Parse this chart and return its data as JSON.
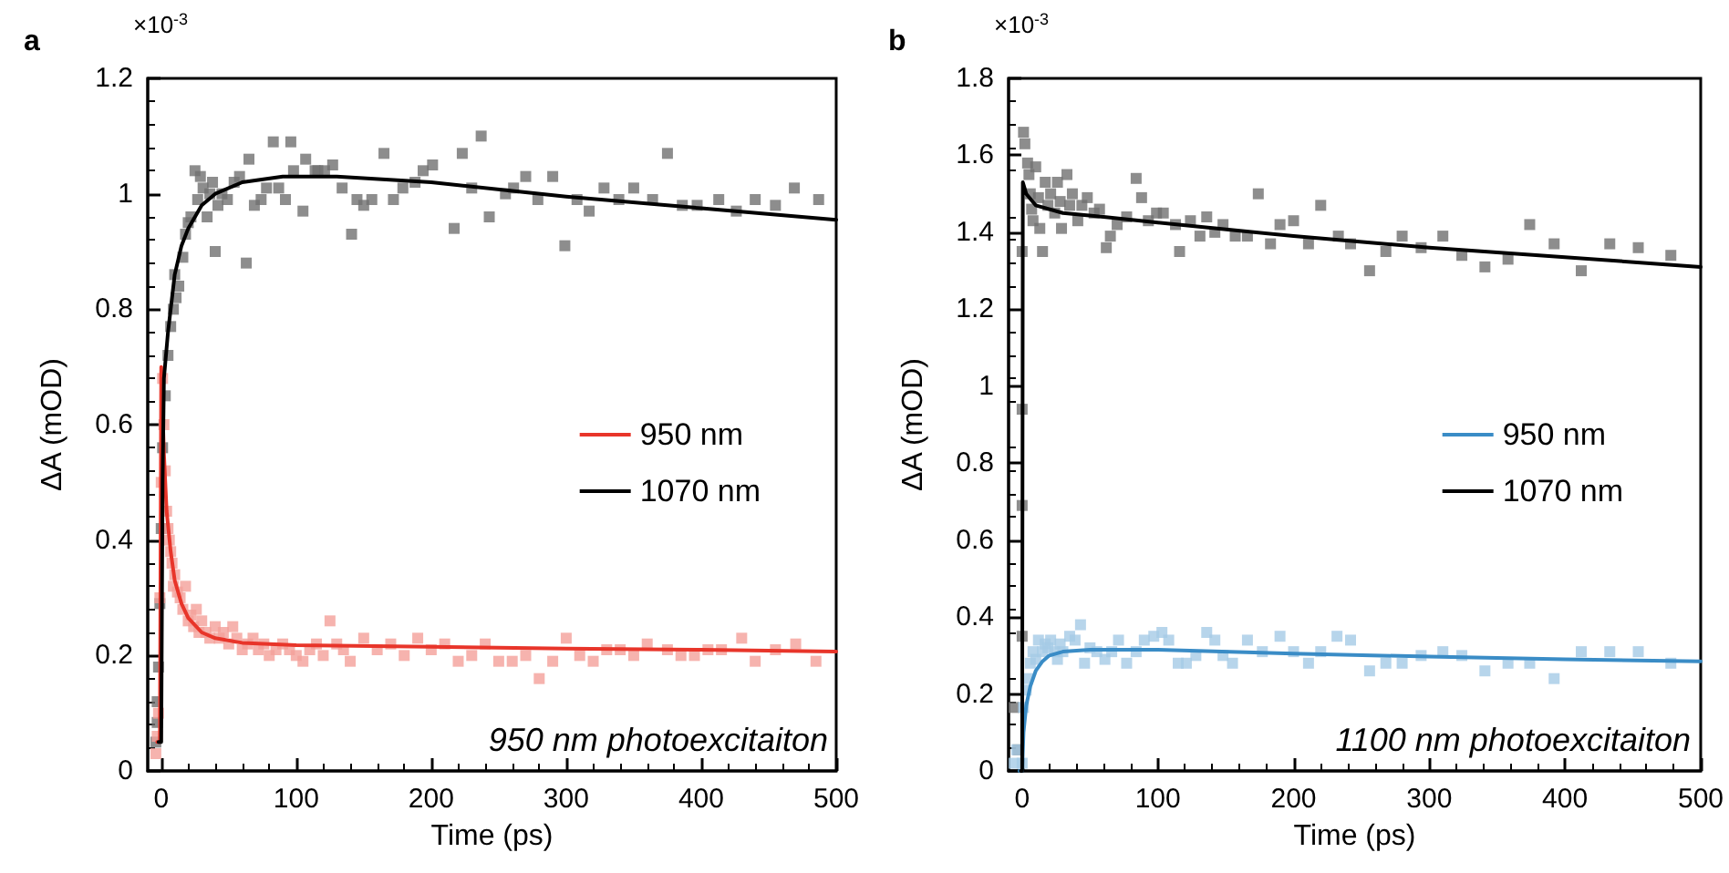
{
  "chart_data": [
    {
      "type": "scatter",
      "title": "a",
      "xlabel": "Time (ps)",
      "ylabel": "ΔA (mOD)",
      "annotations": [
        "×10$^{-3}$",
        "950 nm photoexcitaiton"
      ],
      "xlim": [
        -10,
        500
      ],
      "ylim": [
        0,
        1.2
      ],
      "xticks": [
        0,
        100,
        200,
        300,
        400,
        500
      ],
      "yticks": [
        0,
        0.2,
        0.4,
        0.6,
        0.8,
        1,
        1.2
      ],
      "legend": "right",
      "series": [
        {
          "color": "#707070",
          "marker": "square",
          "x": [
            -4,
            -3,
            -2,
            -3,
            -1,
            0,
            1,
            3,
            5,
            7,
            9,
            10,
            11,
            13,
            16,
            18,
            20,
            22,
            25,
            27,
            29,
            31,
            34,
            36,
            38,
            40,
            42,
            45,
            49,
            54,
            58,
            63,
            65,
            69,
            74,
            78,
            83,
            87,
            92,
            96,
            98,
            105,
            107,
            114,
            116,
            121,
            127,
            134,
            141,
            145,
            150,
            156,
            165,
            172,
            179,
            188,
            194,
            201,
            217,
            223,
            230,
            237,
            243,
            255,
            261,
            270,
            279,
            290,
            299,
            308,
            317,
            328,
            339,
            350,
            364,
            375,
            386,
            397,
            413,
            426,
            440,
            455,
            469,
            487
          ],
          "values": [
            0.05,
            0.12,
            0.18,
            0.084,
            0.29,
            0.42,
            0.56,
            0.65,
            0.72,
            0.77,
            0.8,
            0.86,
            0.82,
            0.84,
            0.89,
            0.93,
            0.95,
            0.96,
            1.04,
            0.99,
            1.03,
            1.01,
            0.96,
            1.0,
            1.02,
            0.9,
            0.98,
            1.0,
            0.99,
            1.02,
            1.03,
            0.88,
            1.06,
            0.98,
            0.99,
            1.01,
            1.09,
            1.01,
            0.99,
            1.09,
            1.04,
            0.97,
            1.06,
            1.04,
            1.04,
            1.04,
            1.05,
            1.01,
            0.93,
            0.99,
            0.98,
            0.99,
            1.07,
            0.99,
            1.01,
            1.02,
            1.04,
            1.05,
            0.94,
            1.07,
            1.01,
            1.1,
            0.96,
            1.0,
            1.01,
            1.03,
            0.99,
            1.03,
            0.91,
            0.99,
            0.97,
            1.01,
            0.99,
            1.01,
            0.99,
            1.07,
            0.98,
            0.98,
            0.99,
            0.97,
            0.99,
            0.98,
            1.01,
            0.99
          ]
        },
        {
          "color": "#f4a09a",
          "marker": "square",
          "x": [
            -4,
            -3,
            -2,
            -1,
            0,
            1,
            2,
            3,
            4,
            5,
            6,
            7,
            8,
            9,
            10,
            12,
            14,
            16,
            18,
            20,
            22,
            24,
            26,
            28,
            30,
            33,
            36,
            40,
            43,
            46,
            50,
            53,
            56,
            60,
            64,
            68,
            72,
            76,
            80,
            85,
            90,
            95,
            100,
            105,
            110,
            115,
            120,
            125,
            130,
            135,
            140,
            150,
            160,
            170,
            180,
            190,
            200,
            210,
            220,
            230,
            240,
            250,
            260,
            270,
            280,
            290,
            300,
            310,
            320,
            330,
            340,
            350,
            360,
            375,
            385,
            395,
            405,
            415,
            430,
            440,
            455,
            470,
            485
          ],
          "values": [
            0.03,
            0.06,
            0.1,
            0.3,
            0.5,
            0.68,
            0.6,
            0.52,
            0.45,
            0.42,
            0.4,
            0.38,
            0.36,
            0.32,
            0.34,
            0.31,
            0.3,
            0.28,
            0.32,
            0.26,
            0.27,
            0.25,
            0.28,
            0.24,
            0.26,
            0.24,
            0.23,
            0.25,
            0.23,
            0.24,
            0.22,
            0.25,
            0.23,
            0.21,
            0.22,
            0.23,
            0.21,
            0.22,
            0.2,
            0.21,
            0.22,
            0.21,
            0.2,
            0.19,
            0.21,
            0.22,
            0.2,
            0.26,
            0.22,
            0.21,
            0.19,
            0.23,
            0.21,
            0.22,
            0.2,
            0.23,
            0.21,
            0.22,
            0.19,
            0.2,
            0.22,
            0.19,
            0.19,
            0.2,
            0.16,
            0.19,
            0.23,
            0.2,
            0.19,
            0.21,
            0.21,
            0.2,
            0.22,
            0.21,
            0.2,
            0.2,
            0.21,
            0.21,
            0.23,
            0.19,
            0.21,
            0.22,
            0.19
          ]
        },
        {
          "name": "950 nm",
          "type": "line",
          "color": "#e8352a",
          "marker": "none",
          "line_style": "solid",
          "x": [
            -3,
            -1,
            0,
            2,
            4,
            7,
            10,
            15,
            20,
            30,
            40,
            60,
            100,
            200,
            300,
            400,
            500
          ],
          "values": [
            0.05,
            0.05,
            0.7,
            0.55,
            0.45,
            0.38,
            0.33,
            0.29,
            0.265,
            0.24,
            0.23,
            0.222,
            0.218,
            0.215,
            0.212,
            0.21,
            0.207
          ]
        },
        {
          "name": "1070 nm",
          "type": "line",
          "color": "#000000",
          "marker": "none",
          "line_style": "solid",
          "x": [
            -2,
            0,
            1,
            2,
            5,
            10,
            15,
            20,
            30,
            40,
            60,
            90,
            130,
            200,
            300,
            400,
            500
          ],
          "values": [
            0.05,
            0.05,
            0.5,
            0.68,
            0.76,
            0.86,
            0.91,
            0.94,
            0.98,
            1.0,
            1.02,
            1.03,
            1.03,
            1.02,
            0.995,
            0.975,
            0.955
          ]
        }
      ]
    },
    {
      "type": "scatter",
      "title": "b",
      "xlabel": "Time (ps)",
      "ylabel": "ΔA (mOD)",
      "annotations": [
        "×10$^{-3}$",
        "1100 nm photoexcitaiton"
      ],
      "xlim": [
        -10,
        500
      ],
      "ylim": [
        0,
        1.8
      ],
      "xticks": [
        0,
        100,
        200,
        300,
        400,
        500
      ],
      "yticks": [
        0,
        0.2,
        0.4,
        0.6,
        0.8,
        1,
        1.2,
        1.4,
        1.6,
        1.8
      ],
      "legend": "right",
      "series": [
        {
          "color": "#707070",
          "marker": "square",
          "x": [
            -6,
            -3,
            0,
            0,
            0,
            0,
            1,
            2,
            4,
            5,
            6,
            7,
            8,
            10,
            12,
            13,
            15,
            17,
            19,
            21,
            24,
            26,
            28,
            29,
            33,
            35,
            37,
            41,
            44,
            48,
            53,
            57,
            62,
            65,
            70,
            77,
            84,
            88,
            93,
            99,
            104,
            113,
            116,
            124,
            131,
            136,
            142,
            148,
            157,
            166,
            174,
            183,
            190,
            200,
            211,
            220,
            233,
            242,
            256,
            268,
            280,
            294,
            310,
            324,
            341,
            358,
            374,
            392,
            412,
            433,
            454,
            478
          ],
          "values": [
            0.165,
            0.055,
            0.35,
            0.69,
            0.94,
            1.35,
            1.66,
            1.63,
            1.58,
            1.55,
            1.5,
            1.46,
            1.43,
            1.57,
            1.49,
            1.41,
            1.35,
            1.53,
            1.47,
            1.5,
            1.45,
            1.53,
            1.48,
            1.41,
            1.55,
            1.47,
            1.5,
            1.43,
            1.47,
            1.49,
            1.45,
            1.46,
            1.36,
            1.39,
            1.42,
            1.44,
            1.54,
            1.49,
            1.43,
            1.45,
            1.45,
            1.42,
            1.35,
            1.43,
            1.39,
            1.44,
            1.4,
            1.42,
            1.39,
            1.39,
            1.5,
            1.37,
            1.42,
            1.43,
            1.37,
            1.47,
            1.39,
            1.37,
            1.3,
            1.35,
            1.39,
            1.36,
            1.39,
            1.34,
            1.31,
            1.33,
            1.42,
            1.37,
            1.3,
            1.37,
            1.36,
            1.34
          ]
        },
        {
          "color": "#a5cae6",
          "marker": "square",
          "x": [
            -6,
            -4,
            0,
            1,
            3,
            4,
            6,
            8,
            10,
            12,
            15,
            17,
            19,
            21,
            24,
            26,
            28,
            30,
            35,
            39,
            43,
            46,
            50,
            55,
            61,
            66,
            71,
            77,
            84,
            90,
            97,
            103,
            108,
            115,
            121,
            128,
            136,
            142,
            148,
            155,
            166,
            177,
            190,
            200,
            211,
            220,
            232,
            242,
            256,
            268,
            280,
            294,
            310,
            324,
            341,
            358,
            374,
            392,
            412,
            433,
            454,
            478
          ],
          "values": [
            0.02,
            0.055,
            0.02,
            0.165,
            0.21,
            0.24,
            0.28,
            0.31,
            0.29,
            0.34,
            0.31,
            0.33,
            0.32,
            0.34,
            0.31,
            0.29,
            0.33,
            0.31,
            0.35,
            0.34,
            0.38,
            0.28,
            0.32,
            0.31,
            0.29,
            0.31,
            0.34,
            0.28,
            0.31,
            0.34,
            0.35,
            0.36,
            0.34,
            0.28,
            0.28,
            0.3,
            0.36,
            0.34,
            0.3,
            0.28,
            0.34,
            0.31,
            0.35,
            0.31,
            0.28,
            0.31,
            0.35,
            0.34,
            0.26,
            0.28,
            0.28,
            0.3,
            0.31,
            0.3,
            0.26,
            0.28,
            0.28,
            0.24,
            0.31,
            0.31,
            0.31,
            0.28
          ]
        },
        {
          "name": "950 nm",
          "type": "line",
          "color": "#3a8cc6",
          "marker": "none",
          "line_style": "solid",
          "x": [
            -2,
            0,
            1,
            3,
            6,
            10,
            15,
            20,
            30,
            50,
            100,
            200,
            300,
            400,
            500
          ],
          "values": [
            0,
            0,
            0.1,
            0.17,
            0.22,
            0.26,
            0.285,
            0.3,
            0.31,
            0.315,
            0.315,
            0.305,
            0.297,
            0.29,
            0.285
          ]
        },
        {
          "name": "1070 nm",
          "type": "line",
          "color": "#000000",
          "marker": "none",
          "line_style": "solid",
          "x": [
            -1,
            0,
            0.5,
            3,
            10,
            30,
            60,
            100,
            200,
            300,
            400,
            500
          ],
          "values": [
            0,
            0,
            1.53,
            1.5,
            1.47,
            1.45,
            1.44,
            1.425,
            1.39,
            1.36,
            1.335,
            1.31
          ]
        }
      ]
    }
  ]
}
